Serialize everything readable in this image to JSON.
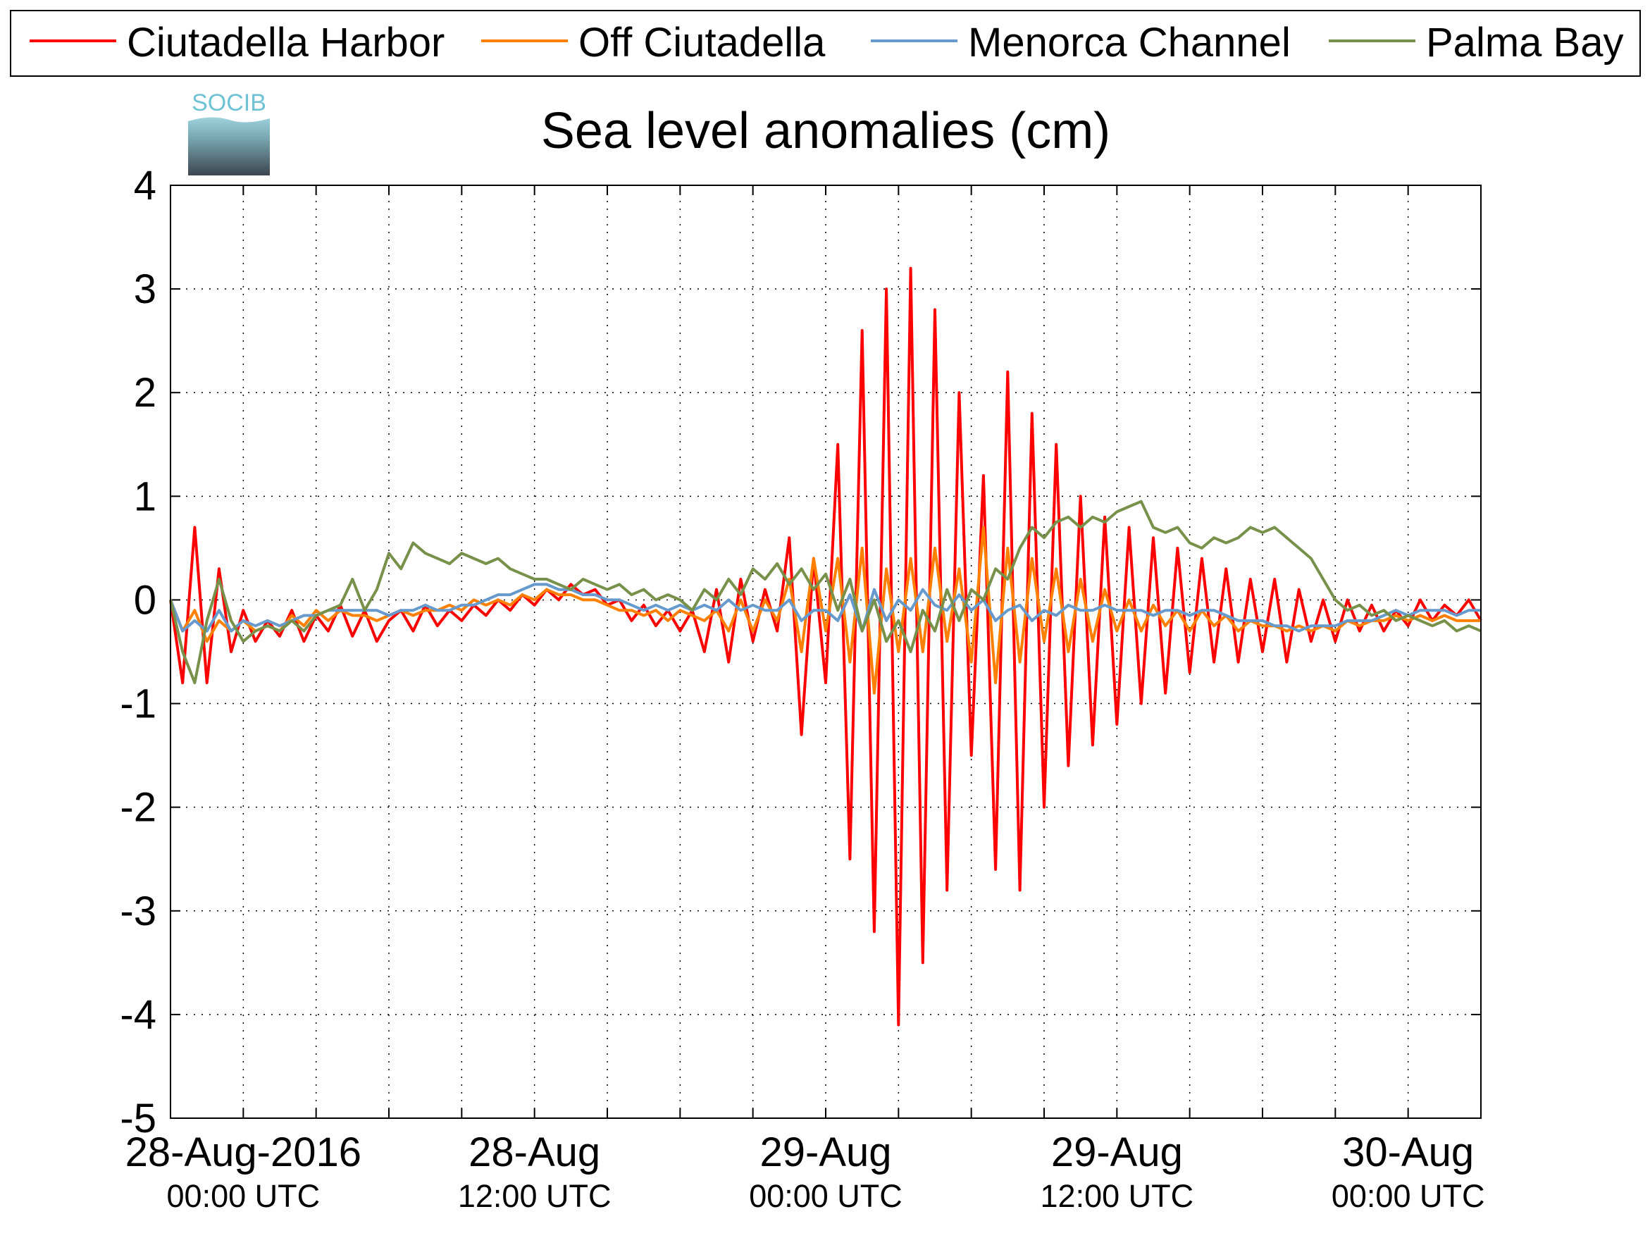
{
  "chart_data": {
    "type": "line",
    "title": "Sea level anomalies (cm)",
    "logo": "SOCIB",
    "x": [
      "2016-08-27 21:00",
      "2016-08-27 21:30",
      "2016-08-27 22:00",
      "2016-08-27 22:30",
      "2016-08-27 23:00",
      "2016-08-27 23:30",
      "2016-08-28 00:00",
      "2016-08-28 00:30",
      "2016-08-28 01:00",
      "2016-08-28 01:30",
      "2016-08-28 02:00",
      "2016-08-28 02:30",
      "2016-08-28 03:00",
      "2016-08-28 03:30",
      "2016-08-28 04:00",
      "2016-08-28 04:30",
      "2016-08-28 05:00",
      "2016-08-28 05:30",
      "2016-08-28 06:00",
      "2016-08-28 06:30",
      "2016-08-28 07:00",
      "2016-08-28 07:30",
      "2016-08-28 08:00",
      "2016-08-28 08:30",
      "2016-08-28 09:00",
      "2016-08-28 09:30",
      "2016-08-28 10:00",
      "2016-08-28 10:30",
      "2016-08-28 11:00",
      "2016-08-28 11:30",
      "2016-08-28 12:00",
      "2016-08-28 12:30",
      "2016-08-28 13:00",
      "2016-08-28 13:30",
      "2016-08-28 14:00",
      "2016-08-28 14:30",
      "2016-08-28 15:00",
      "2016-08-28 15:30",
      "2016-08-28 16:00",
      "2016-08-28 16:30",
      "2016-08-28 17:00",
      "2016-08-28 17:30",
      "2016-08-28 18:00",
      "2016-08-28 18:30",
      "2016-08-28 19:00",
      "2016-08-28 19:30",
      "2016-08-28 20:00",
      "2016-08-28 20:30",
      "2016-08-28 21:00",
      "2016-08-28 21:30",
      "2016-08-28 22:00",
      "2016-08-28 22:30",
      "2016-08-28 23:00",
      "2016-08-28 23:30",
      "2016-08-29 00:00",
      "2016-08-29 00:30",
      "2016-08-29 01:00",
      "2016-08-29 01:30",
      "2016-08-29 02:00",
      "2016-08-29 02:30",
      "2016-08-29 03:00",
      "2016-08-29 03:30",
      "2016-08-29 04:00",
      "2016-08-29 04:30",
      "2016-08-29 05:00",
      "2016-08-29 05:30",
      "2016-08-29 06:00",
      "2016-08-29 06:30",
      "2016-08-29 07:00",
      "2016-08-29 07:30",
      "2016-08-29 08:00",
      "2016-08-29 08:30",
      "2016-08-29 09:00",
      "2016-08-29 09:30",
      "2016-08-29 10:00",
      "2016-08-29 10:30",
      "2016-08-29 11:00",
      "2016-08-29 11:30",
      "2016-08-29 12:00",
      "2016-08-29 12:30",
      "2016-08-29 13:00",
      "2016-08-29 13:30",
      "2016-08-29 14:00",
      "2016-08-29 14:30",
      "2016-08-29 15:00",
      "2016-08-29 15:30",
      "2016-08-29 16:00",
      "2016-08-29 16:30",
      "2016-08-29 17:00",
      "2016-08-29 17:30",
      "2016-08-29 18:00",
      "2016-08-29 18:30",
      "2016-08-29 19:00",
      "2016-08-29 19:30",
      "2016-08-29 20:00",
      "2016-08-29 20:30",
      "2016-08-29 21:00",
      "2016-08-29 21:30",
      "2016-08-29 22:00",
      "2016-08-29 22:30",
      "2016-08-29 23:00",
      "2016-08-29 23:30",
      "2016-08-30 00:00",
      "2016-08-30 00:30",
      "2016-08-30 01:00",
      "2016-08-30 01:30",
      "2016-08-30 02:00",
      "2016-08-30 02:30",
      "2016-08-30 03:00"
    ],
    "series": [
      {
        "name": "Ciutadella Harbor",
        "color": "#ff0000",
        "values": [
          0,
          -0.8,
          0.7,
          -0.8,
          0.3,
          -0.5,
          -0.1,
          -0.4,
          -0.2,
          -0.35,
          -0.1,
          -0.4,
          -0.15,
          -0.3,
          -0.05,
          -0.35,
          -0.1,
          -0.4,
          -0.2,
          -0.1,
          -0.3,
          -0.05,
          -0.25,
          -0.1,
          -0.2,
          -0.05,
          -0.15,
          0,
          -0.1,
          0.05,
          -0.05,
          0.1,
          0,
          0.15,
          0.05,
          0.1,
          -0.05,
          0,
          -0.2,
          -0.05,
          -0.25,
          -0.1,
          -0.3,
          -0.1,
          -0.5,
          0.1,
          -0.6,
          0.2,
          -0.4,
          0.1,
          -0.3,
          0.6,
          -1.3,
          0.4,
          -0.8,
          1.5,
          -2.5,
          2.6,
          -3.2,
          3.0,
          -4.1,
          3.2,
          -3.5,
          2.8,
          -2.8,
          2.0,
          -1.5,
          1.2,
          -2.6,
          2.2,
          -2.8,
          1.8,
          -2.0,
          1.5,
          -1.6,
          1.0,
          -1.4,
          0.8,
          -1.2,
          0.7,
          -1.0,
          0.6,
          -0.9,
          0.5,
          -0.7,
          0.4,
          -0.6,
          0.3,
          -0.6,
          0.2,
          -0.5,
          0.2,
          -0.6,
          0.1,
          -0.4,
          0,
          -0.4,
          0,
          -0.3,
          -0.05,
          -0.3,
          -0.1,
          -0.25,
          0,
          -0.2,
          -0.05,
          -0.15,
          0,
          -0.2
        ]
      },
      {
        "name": "Off Ciutadella",
        "color": "#ff8000",
        "values": [
          0,
          -0.3,
          -0.1,
          -0.4,
          -0.2,
          -0.3,
          -0.2,
          -0.3,
          -0.25,
          -0.3,
          -0.15,
          -0.25,
          -0.1,
          -0.2,
          -0.1,
          -0.15,
          -0.15,
          -0.2,
          -0.15,
          -0.1,
          -0.15,
          -0.1,
          -0.1,
          -0.05,
          -0.1,
          0,
          -0.05,
          0,
          -0.05,
          0.05,
          0,
          0.1,
          0.05,
          0.05,
          0,
          0,
          -0.05,
          -0.1,
          -0.1,
          -0.15,
          -0.1,
          -0.2,
          -0.1,
          -0.15,
          -0.2,
          -0.1,
          -0.3,
          0,
          -0.3,
          0,
          -0.2,
          0.2,
          -0.5,
          0.4,
          -0.3,
          0.4,
          -0.6,
          0.5,
          -0.9,
          0.3,
          -0.5,
          0.4,
          -0.5,
          0.5,
          -0.4,
          0.3,
          -0.6,
          0.7,
          -0.8,
          0.5,
          -0.6,
          0.4,
          -0.4,
          0.3,
          -0.5,
          0.2,
          -0.4,
          0.1,
          -0.3,
          0,
          -0.3,
          -0.05,
          -0.25,
          -0.1,
          -0.3,
          -0.1,
          -0.25,
          -0.15,
          -0.3,
          -0.2,
          -0.25,
          -0.25,
          -0.3,
          -0.25,
          -0.3,
          -0.25,
          -0.3,
          -0.2,
          -0.25,
          -0.2,
          -0.2,
          -0.15,
          -0.2,
          -0.15,
          -0.2,
          -0.15,
          -0.2,
          -0.2,
          -0.2
        ]
      },
      {
        "name": "Menorca Channel",
        "color": "#6699cc",
        "values": [
          0,
          -0.3,
          -0.2,
          -0.3,
          -0.1,
          -0.3,
          -0.2,
          -0.25,
          -0.2,
          -0.25,
          -0.2,
          -0.15,
          -0.15,
          -0.1,
          -0.1,
          -0.1,
          -0.1,
          -0.1,
          -0.15,
          -0.1,
          -0.1,
          -0.05,
          -0.1,
          -0.1,
          -0.05,
          -0.05,
          0,
          0.05,
          0.05,
          0.1,
          0.15,
          0.15,
          0.1,
          0.1,
          0.05,
          0.05,
          0,
          0,
          -0.05,
          -0.1,
          -0.05,
          -0.1,
          -0.05,
          -0.1,
          -0.05,
          -0.1,
          0,
          -0.1,
          -0.05,
          -0.1,
          -0.1,
          0,
          -0.2,
          -0.1,
          -0.1,
          -0.2,
          0.05,
          -0.3,
          0.1,
          -0.2,
          0,
          -0.1,
          0.1,
          -0.05,
          -0.1,
          0.05,
          -0.1,
          0,
          -0.2,
          -0.1,
          -0.05,
          -0.2,
          -0.1,
          -0.15,
          -0.05,
          -0.1,
          -0.1,
          -0.05,
          -0.1,
          -0.1,
          -0.1,
          -0.15,
          -0.1,
          -0.1,
          -0.15,
          -0.1,
          -0.1,
          -0.15,
          -0.2,
          -0.2,
          -0.2,
          -0.25,
          -0.25,
          -0.3,
          -0.25,
          -0.25,
          -0.25,
          -0.2,
          -0.2,
          -0.2,
          -0.15,
          -0.1,
          -0.15,
          -0.1,
          -0.1,
          -0.1,
          -0.15,
          -0.1,
          -0.1
        ]
      },
      {
        "name": "Palma Bay",
        "color": "#77904a",
        "values": [
          0,
          -0.5,
          -0.8,
          -0.2,
          0.2,
          -0.2,
          -0.4,
          -0.3,
          -0.25,
          -0.3,
          -0.2,
          -0.3,
          -0.15,
          -0.1,
          -0.05,
          0.2,
          -0.1,
          0.1,
          0.45,
          0.3,
          0.55,
          0.45,
          0.4,
          0.35,
          0.45,
          0.4,
          0.35,
          0.4,
          0.3,
          0.25,
          0.2,
          0.2,
          0.15,
          0.1,
          0.2,
          0.15,
          0.1,
          0.15,
          0.05,
          0.1,
          0,
          0.05,
          0,
          -0.1,
          0.1,
          0,
          0.2,
          0.05,
          0.3,
          0.2,
          0.35,
          0.15,
          0.3,
          0.1,
          0.25,
          -0.1,
          0.2,
          -0.3,
          0,
          -0.4,
          -0.2,
          -0.5,
          -0.1,
          -0.3,
          0.1,
          -0.2,
          0.1,
          0,
          0.3,
          0.2,
          0.5,
          0.7,
          0.6,
          0.75,
          0.8,
          0.7,
          0.8,
          0.75,
          0.85,
          0.9,
          0.95,
          0.7,
          0.65,
          0.7,
          0.55,
          0.5,
          0.6,
          0.55,
          0.6,
          0.7,
          0.65,
          0.7,
          0.6,
          0.5,
          0.4,
          0.2,
          0,
          -0.1,
          -0.05,
          -0.15,
          -0.1,
          -0.2,
          -0.15,
          -0.2,
          -0.25,
          -0.2,
          -0.3,
          -0.25,
          -0.3
        ]
      }
    ],
    "xlim": [
      "2016-08-27 21:00",
      "2016-08-30 03:00"
    ],
    "xticks": [
      {
        "value": "2016-08-28 00:00",
        "label": "28-Aug-2016",
        "sublabel": "00:00 UTC"
      },
      {
        "value": "2016-08-28 12:00",
        "label": "28-Aug",
        "sublabel": "12:00 UTC"
      },
      {
        "value": "2016-08-29 00:00",
        "label": "29-Aug",
        "sublabel": "00:00 UTC"
      },
      {
        "value": "2016-08-29 12:00",
        "label": "29-Aug",
        "sublabel": "12:00 UTC"
      },
      {
        "value": "2016-08-30 00:00",
        "label": "30-Aug",
        "sublabel": "00:00 UTC"
      }
    ],
    "xminorticks": [
      "2016-08-28 03:00",
      "2016-08-28 06:00",
      "2016-08-28 09:00",
      "2016-08-28 15:00",
      "2016-08-28 18:00",
      "2016-08-28 21:00",
      "2016-08-29 03:00",
      "2016-08-29 06:00",
      "2016-08-29 09:00",
      "2016-08-29 15:00",
      "2016-08-29 18:00",
      "2016-08-29 21:00"
    ],
    "ylim": [
      -5,
      4
    ],
    "yticks": [
      -5,
      -4,
      -3,
      -2,
      -1,
      0,
      1,
      2,
      3,
      4
    ],
    "grid": true,
    "legend": "top"
  }
}
